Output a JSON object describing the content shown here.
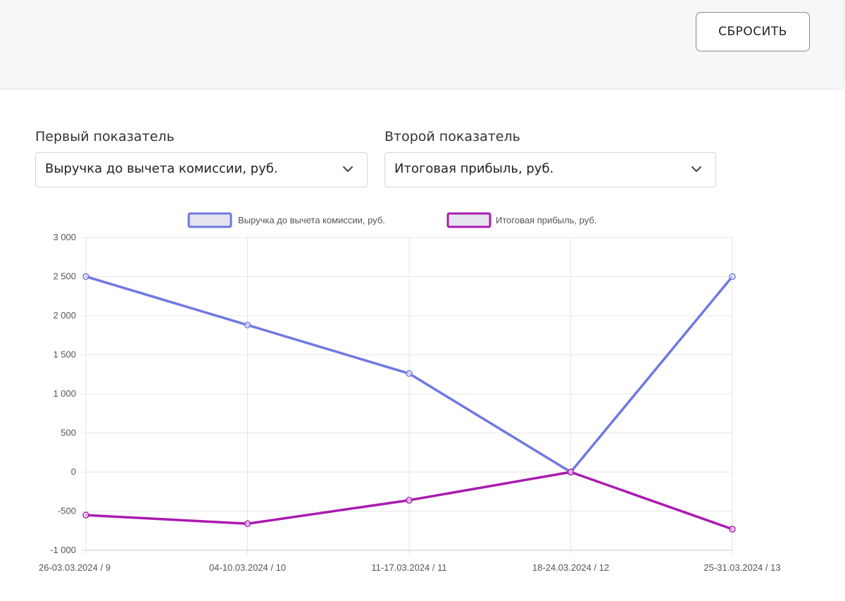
{
  "controls": {
    "reset_label": "СБРОСИТЬ",
    "first_metric": {
      "label": "Первый показатель",
      "value": "Выручка до вычета комиссии, руб."
    },
    "second_metric": {
      "label": "Второй показатель",
      "value": "Итоговая прибыль, руб."
    }
  },
  "chart_data": {
    "type": "line",
    "title": "",
    "xlabel": "",
    "ylabel": "",
    "categories": [
      "26-03.03.2024 / 9",
      "04-10.03.2024 / 10",
      "11-17.03.2024 / 11",
      "18-24.03.2024 / 12",
      "25-31.03.2024 / 13"
    ],
    "ylim": [
      -1000,
      3000
    ],
    "yticks": [
      3000,
      2500,
      2000,
      1500,
      1000,
      500,
      0,
      -500,
      -1000
    ],
    "ytick_labels": [
      "3 000",
      "2 500",
      "2 000",
      "1 500",
      "1 000",
      "500",
      "0",
      "-500",
      "-1 000"
    ],
    "grid": true,
    "legend_position": "top",
    "series": [
      {
        "name": "Выручка до вычета комиссии, руб.",
        "color": "#7078e2",
        "values": [
          2500,
          1880,
          1260,
          0,
          2500
        ]
      },
      {
        "name": "Итоговая прибыль, руб.",
        "color": "#aa1ab0",
        "values": [
          -550,
          -660,
          -360,
          0,
          -730
        ]
      }
    ]
  }
}
